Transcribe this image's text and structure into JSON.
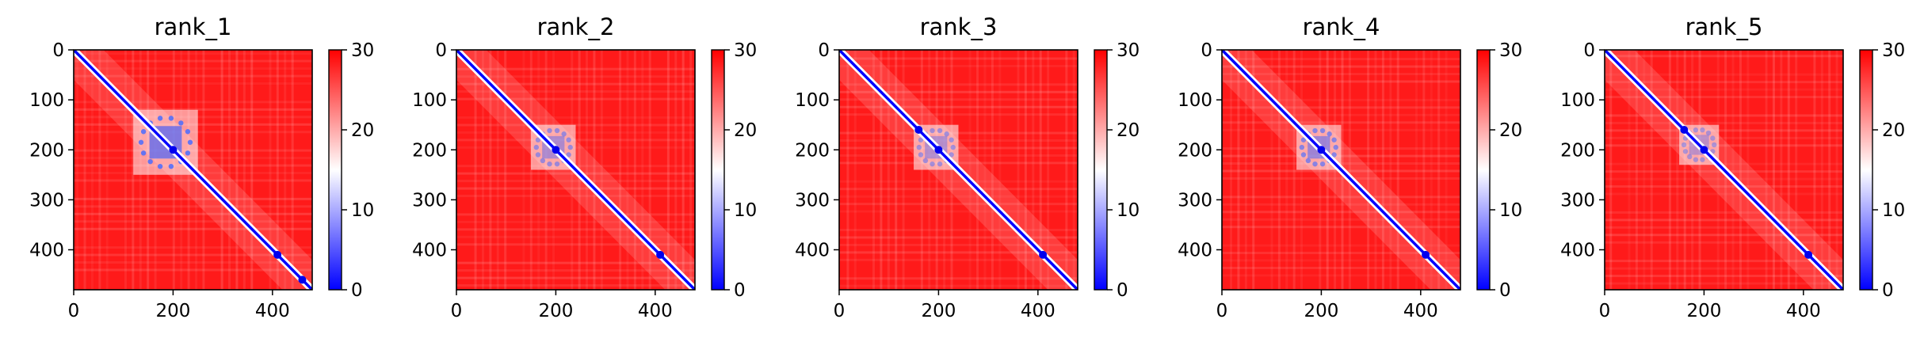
{
  "chart_data": [
    {
      "type": "heatmap",
      "title": "rank_1",
      "x_ticks": [
        "0",
        "200",
        "400"
      ],
      "y_ticks": [
        "0",
        "100",
        "200",
        "300",
        "400"
      ],
      "xlim": [
        0,
        480
      ],
      "ylim": [
        0,
        480
      ],
      "colorbar": {
        "min": 0,
        "max": 30,
        "ticks": [
          "0",
          "10",
          "20",
          "30"
        ],
        "colors": [
          "#0000ff",
          "#ffffff",
          "#ff0000"
        ]
      },
      "low_blocks": [
        {
          "start": 120,
          "end": 250,
          "strength": 0.85
        }
      ],
      "diagonal_minima": [
        200,
        410,
        460
      ]
    },
    {
      "type": "heatmap",
      "title": "rank_2",
      "x_ticks": [
        "0",
        "200",
        "400"
      ],
      "y_ticks": [
        "0",
        "100",
        "200",
        "300",
        "400"
      ],
      "xlim": [
        0,
        480
      ],
      "ylim": [
        0,
        480
      ],
      "colorbar": {
        "min": 0,
        "max": 30,
        "ticks": [
          "0",
          "10",
          "20",
          "30"
        ],
        "colors": [
          "#0000ff",
          "#ffffff",
          "#ff0000"
        ]
      },
      "low_blocks": [
        {
          "start": 150,
          "end": 240,
          "strength": 0.55
        }
      ],
      "diagonal_minima": [
        200,
        410
      ]
    },
    {
      "type": "heatmap",
      "title": "rank_3",
      "x_ticks": [
        "0",
        "200",
        "400"
      ],
      "y_ticks": [
        "0",
        "100",
        "200",
        "300",
        "400"
      ],
      "xlim": [
        0,
        480
      ],
      "ylim": [
        0,
        480
      ],
      "colorbar": {
        "min": 0,
        "max": 30,
        "ticks": [
          "0",
          "10",
          "20",
          "30"
        ],
        "colors": [
          "#0000ff",
          "#ffffff",
          "#ff0000"
        ]
      },
      "low_blocks": [
        {
          "start": 150,
          "end": 240,
          "strength": 0.5
        }
      ],
      "diagonal_minima": [
        160,
        200,
        410
      ]
    },
    {
      "type": "heatmap",
      "title": "rank_4",
      "x_ticks": [
        "0",
        "200",
        "400"
      ],
      "y_ticks": [
        "0",
        "100",
        "200",
        "300",
        "400"
      ],
      "xlim": [
        0,
        480
      ],
      "ylim": [
        0,
        480
      ],
      "colorbar": {
        "min": 0,
        "max": 30,
        "ticks": [
          "0",
          "10",
          "20",
          "30"
        ],
        "colors": [
          "#0000ff",
          "#ffffff",
          "#ff0000"
        ]
      },
      "low_blocks": [
        {
          "start": 150,
          "end": 240,
          "strength": 0.65
        }
      ],
      "diagonal_minima": [
        200,
        410
      ]
    },
    {
      "type": "heatmap",
      "title": "rank_5",
      "x_ticks": [
        "0",
        "200",
        "400"
      ],
      "y_ticks": [
        "0",
        "100",
        "200",
        "300",
        "400"
      ],
      "xlim": [
        0,
        480
      ],
      "ylim": [
        0,
        480
      ],
      "colorbar": {
        "min": 0,
        "max": 30,
        "ticks": [
          "0",
          "10",
          "20",
          "30"
        ],
        "colors": [
          "#0000ff",
          "#ffffff",
          "#ff0000"
        ]
      },
      "low_blocks": [
        {
          "start": 150,
          "end": 230,
          "strength": 0.45
        }
      ],
      "diagonal_minima": [
        160,
        200,
        410
      ]
    }
  ]
}
